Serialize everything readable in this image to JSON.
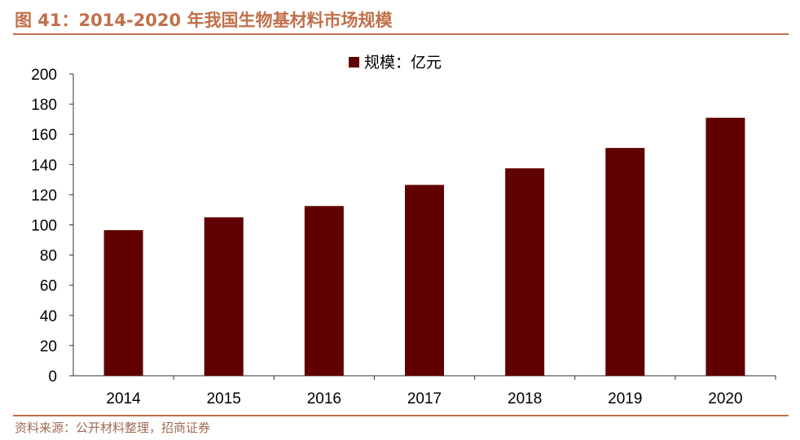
{
  "figure_title": "图 41：2014-2020 年我国生物基材料市场规模",
  "source_note": "资料来源：公开材料整理，招商证券",
  "colors": {
    "bar": "#600000",
    "accent": "#c0704a",
    "axis": "#333333"
  },
  "chart_data": {
    "type": "bar",
    "categories": [
      "2014",
      "2015",
      "2016",
      "2017",
      "2018",
      "2019",
      "2020"
    ],
    "series": [
      {
        "name": "规模：亿元",
        "values": [
          96.5,
          105,
          112.5,
          126.5,
          137.5,
          151,
          171
        ]
      }
    ],
    "ylim": [
      0,
      200
    ],
    "yticks": [
      0,
      20,
      40,
      60,
      80,
      100,
      120,
      140,
      160,
      180,
      200
    ],
    "grid": false,
    "legend_position": "top-center"
  }
}
